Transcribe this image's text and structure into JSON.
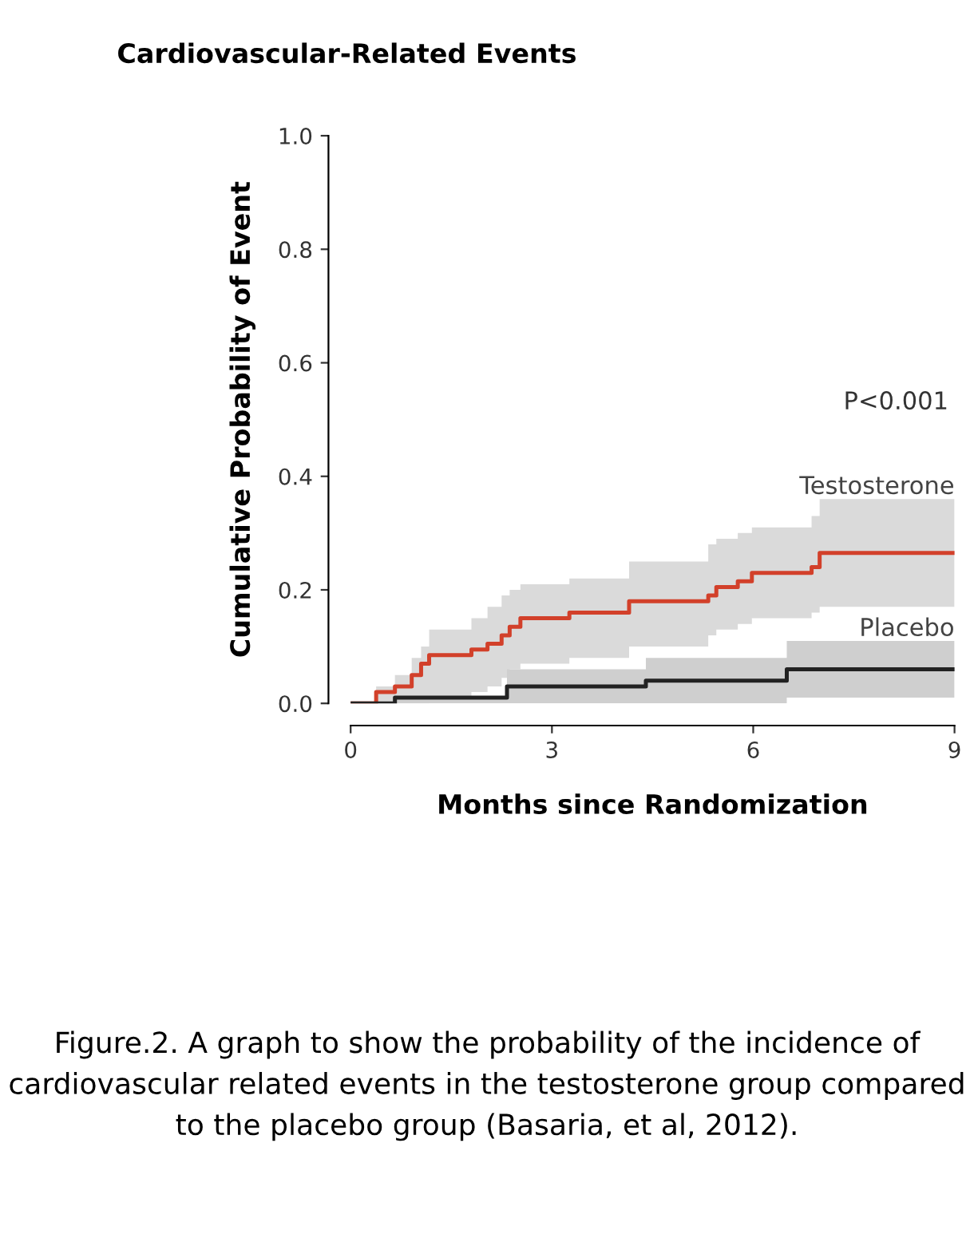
{
  "chart_data": {
    "type": "step",
    "title": "Cardiovascular-Related Events",
    "xlabel": "Months since Randomization",
    "ylabel": "Cumulative Probability of Event",
    "xlim": [
      0,
      9
    ],
    "xticks": [
      0,
      3,
      6,
      9
    ],
    "ylim": [
      0,
      1.0
    ],
    "yticks": [
      {
        "value": 0,
        "label": "0.0"
      },
      {
        "value": 0.2,
        "label": "0.2"
      },
      {
        "value": 0.4,
        "label": "0.4"
      },
      {
        "value": 0.6,
        "label": "0.6"
      },
      {
        "value": 0.8,
        "label": "0.8"
      },
      {
        "value": 1.0,
        "label": "1.0"
      }
    ],
    "grid": false,
    "legend": false,
    "series": [
      {
        "name": "Testosterone",
        "color": "#d2402a",
        "x": [
          0,
          0.38,
          0.66,
          0.91,
          1.05,
          1.17,
          1.8,
          2.04,
          2.25,
          2.37,
          2.53,
          3.26,
          4.15,
          5.33,
          5.45,
          5.77,
          5.98,
          6.87,
          6.99,
          9
        ],
        "values": [
          0,
          0.02,
          0.03,
          0.05,
          0.07,
          0.085,
          0.095,
          0.105,
          0.12,
          0.135,
          0.15,
          0.16,
          0.18,
          0.19,
          0.205,
          0.215,
          0.23,
          0.24,
          0.265,
          0.265
        ],
        "lower": [
          0,
          0,
          0,
          0,
          0,
          0.01,
          0.02,
          0.03,
          0.045,
          0.06,
          0.07,
          0.08,
          0.1,
          0.12,
          0.13,
          0.14,
          0.15,
          0.16,
          0.17,
          0.17
        ],
        "upper": [
          0,
          0.03,
          0.05,
          0.08,
          0.1,
          0.13,
          0.15,
          0.17,
          0.19,
          0.2,
          0.21,
          0.22,
          0.25,
          0.28,
          0.29,
          0.3,
          0.31,
          0.33,
          0.36,
          0.36
        ]
      },
      {
        "name": "Placebo",
        "color": "#222222",
        "x": [
          0,
          0.66,
          2.33,
          4.4,
          6.5,
          9
        ],
        "values": [
          0,
          0.01,
          0.03,
          0.04,
          0.06,
          0.06
        ],
        "lower": [
          0,
          0,
          0,
          0,
          0.01,
          0.01
        ],
        "upper": [
          0,
          0.01,
          0.06,
          0.08,
          0.11,
          0.11
        ]
      }
    ],
    "annotations": [
      "P<0.001",
      "Figure.2. A graph to show the probability of the incidence of cardiovascular related events in the testosterone group compared to the placebo group (Basaria, et al, 2012)."
    ]
  }
}
